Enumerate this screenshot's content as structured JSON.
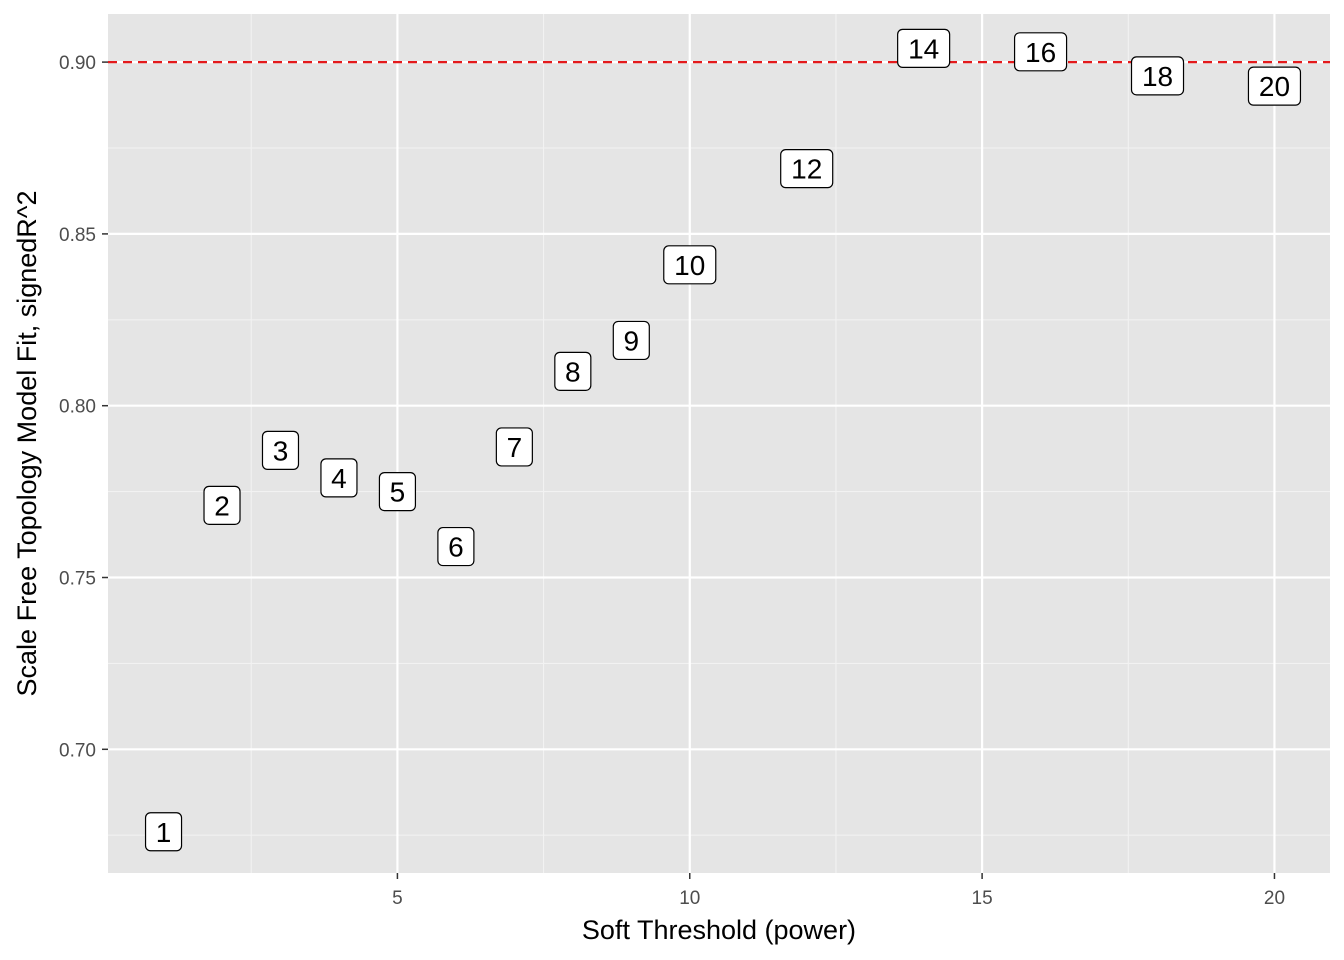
{
  "chart_data": {
    "type": "scatter",
    "title": "",
    "xlabel": "Soft Threshold (power)",
    "ylabel": "Scale Free Topology Model Fit, signedR^2",
    "xlim": [
      0.05,
      20.95
    ],
    "ylim": [
      0.664,
      0.914
    ],
    "x_ticks": [
      5,
      10,
      15,
      20
    ],
    "x_tick_labels": [
      "5",
      "10",
      "15",
      "20"
    ],
    "y_ticks": [
      0.7,
      0.75,
      0.8,
      0.85,
      0.9
    ],
    "y_tick_labels": [
      "0.70",
      "0.75",
      "0.80",
      "0.85",
      "0.90"
    ],
    "grid": true,
    "reference_line": {
      "y": 0.9,
      "color": "#e41a1c",
      "style": "dashed"
    },
    "points": [
      {
        "x": 1,
        "y": 0.676,
        "label": "1"
      },
      {
        "x": 2,
        "y": 0.771,
        "label": "2"
      },
      {
        "x": 3,
        "y": 0.787,
        "label": "3"
      },
      {
        "x": 4,
        "y": 0.779,
        "label": "4"
      },
      {
        "x": 5,
        "y": 0.775,
        "label": "5"
      },
      {
        "x": 6,
        "y": 0.759,
        "label": "6"
      },
      {
        "x": 7,
        "y": 0.788,
        "label": "7"
      },
      {
        "x": 8,
        "y": 0.81,
        "label": "8"
      },
      {
        "x": 9,
        "y": 0.819,
        "label": "9"
      },
      {
        "x": 10,
        "y": 0.841,
        "label": "10"
      },
      {
        "x": 12,
        "y": 0.869,
        "label": "12"
      },
      {
        "x": 14,
        "y": 0.904,
        "label": "14"
      },
      {
        "x": 16,
        "y": 0.903,
        "label": "16"
      },
      {
        "x": 18,
        "y": 0.896,
        "label": "18"
      },
      {
        "x": 20,
        "y": 0.893,
        "label": "20"
      }
    ],
    "colors": {
      "panel_background": "#e5e5e5",
      "grid_major": "#ffffff",
      "grid_minor": "#f2f2f2",
      "label_fill": "#ffffff",
      "label_border": "#000000"
    }
  }
}
